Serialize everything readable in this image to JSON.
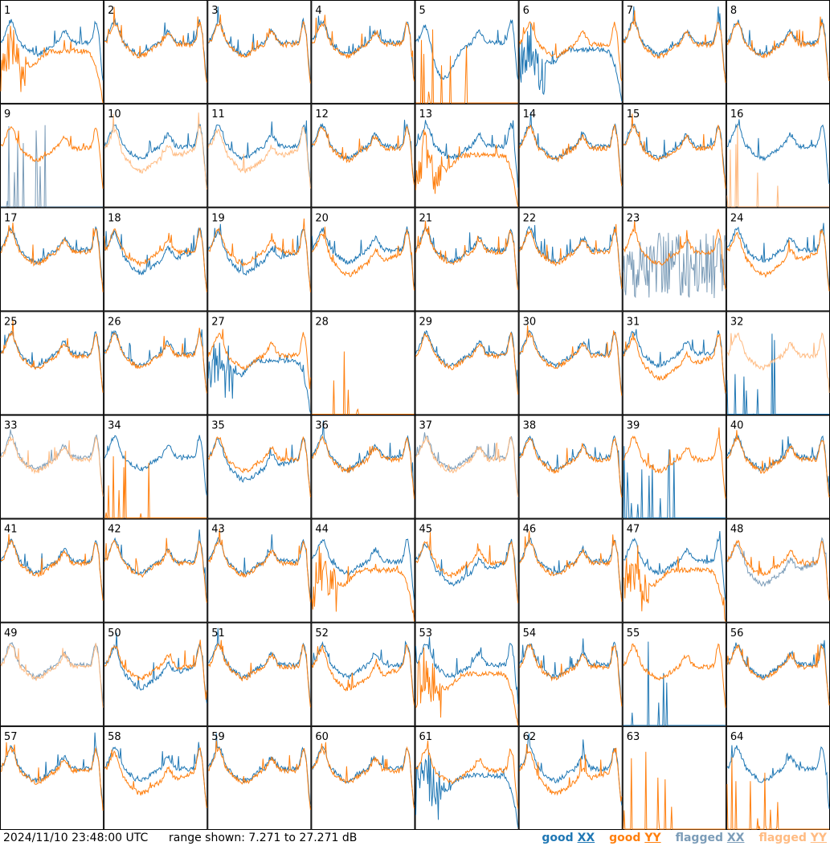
{
  "footer": {
    "timestamp": "2024/11/10 23:48:00 UTC",
    "range_text": "range shown: 7.271 to 27.271 dB",
    "legend": [
      {
        "label": "good",
        "pol": "XX",
        "color": "#1f77b4"
      },
      {
        "label": "good",
        "pol": "YY",
        "color": "#ff7f0e"
      },
      {
        "label": "flagged",
        "pol": "XX",
        "color": "#7b9cb8"
      },
      {
        "label": "flagged",
        "pol": "YY",
        "color": "#ffbb82"
      }
    ]
  },
  "chart_data": {
    "type": "line",
    "layout": {
      "rows": 8,
      "cols": 8
    },
    "ylim": [
      7.271,
      27.271
    ],
    "units": "dB",
    "colors": {
      "good_xx": "#1f77b4",
      "good_yy": "#ff7f0e",
      "flagged_xx": "#7b9cb8",
      "flagged_yy": "#ffbb82"
    },
    "panels": [
      {
        "label": "1",
        "xx": "normal",
        "yy": "drop"
      },
      {
        "label": "2",
        "xx": "normal",
        "yy": "normal"
      },
      {
        "label": "3",
        "xx": "normal",
        "yy": "normal"
      },
      {
        "label": "4",
        "xx": "normal",
        "yy": "normal"
      },
      {
        "label": "5",
        "xx": "dip",
        "yy": "spike"
      },
      {
        "label": "6",
        "xx": "drop",
        "yy": "normal"
      },
      {
        "label": "7",
        "xx": "normal",
        "yy": "normal"
      },
      {
        "label": "8",
        "xx": "normal",
        "yy": "normal"
      },
      {
        "label": "9",
        "xx": "spike",
        "yy": "normal",
        "xx_flagged": true
      },
      {
        "label": "10",
        "xx": "normal",
        "yy": "low",
        "yy_flagged": true
      },
      {
        "label": "11",
        "xx": "normal",
        "yy": "low",
        "yy_flagged": true
      },
      {
        "label": "12",
        "xx": "normal",
        "yy": "normal"
      },
      {
        "label": "13",
        "xx": "normal",
        "yy": "drop"
      },
      {
        "label": "14",
        "xx": "normal",
        "yy": "normal"
      },
      {
        "label": "15",
        "xx": "normal",
        "yy": "normal"
      },
      {
        "label": "16",
        "xx": "normal",
        "yy": "spike",
        "yy_flagged": true
      },
      {
        "label": "17",
        "xx": "normal",
        "yy": "normal"
      },
      {
        "label": "18",
        "xx": "low",
        "yy": "normal"
      },
      {
        "label": "19",
        "xx": "low",
        "yy": "normal"
      },
      {
        "label": "20",
        "xx": "normal",
        "yy": "low"
      },
      {
        "label": "21",
        "xx": "normal",
        "yy": "normal"
      },
      {
        "label": "22",
        "xx": "normal",
        "yy": "normal"
      },
      {
        "label": "23",
        "xx": "noisy",
        "yy": "normal",
        "xx_flagged": true
      },
      {
        "label": "24",
        "xx": "normal",
        "yy": "low"
      },
      {
        "label": "25",
        "xx": "normal",
        "yy": "normal"
      },
      {
        "label": "26",
        "xx": "normal",
        "yy": "normal"
      },
      {
        "label": "27",
        "xx": "drop",
        "yy": "normal"
      },
      {
        "label": "28",
        "xx": "none",
        "yy": "spike"
      },
      {
        "label": "29",
        "xx": "normal",
        "yy": "normal"
      },
      {
        "label": "30",
        "xx": "normal",
        "yy": "normal"
      },
      {
        "label": "31",
        "xx": "normal",
        "yy": "low"
      },
      {
        "label": "32",
        "xx": "spike",
        "yy": "normal",
        "yy_flagged": true
      },
      {
        "label": "33",
        "xx": "normal",
        "yy": "normal",
        "xx_flagged": true,
        "yy_flagged": true
      },
      {
        "label": "34",
        "xx": "normal",
        "yy": "spike"
      },
      {
        "label": "35",
        "xx": "low",
        "yy": "normal"
      },
      {
        "label": "36",
        "xx": "normal",
        "yy": "normal"
      },
      {
        "label": "37",
        "xx": "normal",
        "yy": "normal",
        "xx_flagged": true,
        "yy_flagged": true
      },
      {
        "label": "38",
        "xx": "normal",
        "yy": "normal"
      },
      {
        "label": "39",
        "xx": "spike",
        "yy": "normal"
      },
      {
        "label": "40",
        "xx": "normal",
        "yy": "normal"
      },
      {
        "label": "41",
        "xx": "normal",
        "yy": "normal"
      },
      {
        "label": "42",
        "xx": "normal",
        "yy": "normal"
      },
      {
        "label": "43",
        "xx": "normal",
        "yy": "normal"
      },
      {
        "label": "44",
        "xx": "normal",
        "yy": "drop"
      },
      {
        "label": "45",
        "xx": "low",
        "yy": "normal"
      },
      {
        "label": "46",
        "xx": "normal",
        "yy": "normal"
      },
      {
        "label": "47",
        "xx": "normal",
        "yy": "drop"
      },
      {
        "label": "48",
        "xx": "low",
        "yy": "normal",
        "xx_flagged": true
      },
      {
        "label": "49",
        "xx": "normal",
        "yy": "normal",
        "xx_flagged": true,
        "yy_flagged": true
      },
      {
        "label": "50",
        "xx": "low",
        "yy": "normal"
      },
      {
        "label": "51",
        "xx": "normal",
        "yy": "normal"
      },
      {
        "label": "52",
        "xx": "normal",
        "yy": "low"
      },
      {
        "label": "53",
        "xx": "normal",
        "yy": "drop"
      },
      {
        "label": "54",
        "xx": "normal",
        "yy": "normal"
      },
      {
        "label": "55",
        "xx": "spike",
        "yy": "normal"
      },
      {
        "label": "56",
        "xx": "normal",
        "yy": "normal"
      },
      {
        "label": "57",
        "xx": "normal",
        "yy": "normal"
      },
      {
        "label": "58",
        "xx": "normal",
        "yy": "low"
      },
      {
        "label": "59",
        "xx": "normal",
        "yy": "normal"
      },
      {
        "label": "60",
        "xx": "normal",
        "yy": "normal"
      },
      {
        "label": "61",
        "xx": "drop",
        "yy": "normal"
      },
      {
        "label": "62",
        "xx": "normal",
        "yy": "low"
      },
      {
        "label": "63",
        "xx": "none",
        "yy": "spike"
      },
      {
        "label": "64",
        "xx": "normal",
        "yy": "spike"
      }
    ]
  }
}
